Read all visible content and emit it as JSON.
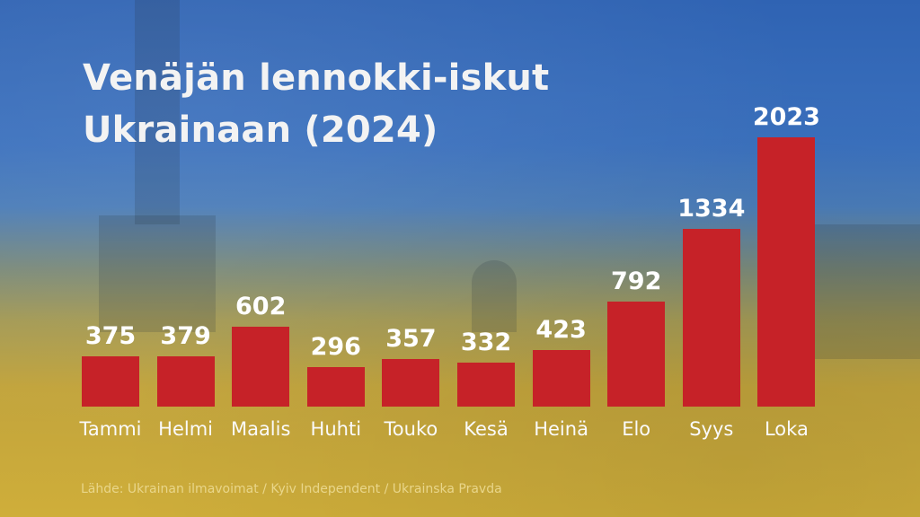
{
  "title": {
    "line1": "Venäjän lennokki-iskut",
    "line2": "Ukrainaan (2024)"
  },
  "source": "Lähde: Ukrainan ilmavoimat / Kyiv Independent / Ukrainska Pravda",
  "colors": {
    "bar": "#c62228",
    "text": "#ffffff"
  },
  "chart_data": {
    "type": "bar",
    "title": "Venäjän lennokki-iskut Ukrainaan (2024)",
    "categories": [
      "Tammi",
      "Helmi",
      "Maalis",
      "Huhti",
      "Touko",
      "Kesä",
      "Heinä",
      "Elo",
      "Syys",
      "Loka"
    ],
    "values": [
      375,
      379,
      602,
      296,
      357,
      332,
      423,
      792,
      1334,
      2023
    ],
    "value_labels": [
      "375",
      "379",
      "602",
      "296",
      "357",
      "332",
      "423",
      "792",
      "1334",
      "2023"
    ],
    "xlabel": "",
    "ylabel": "",
    "grid": false,
    "legend": null,
    "source": "Lähde: Ukrainan ilmavoimat / Kyiv Independent / Ukrainska Pravda"
  }
}
